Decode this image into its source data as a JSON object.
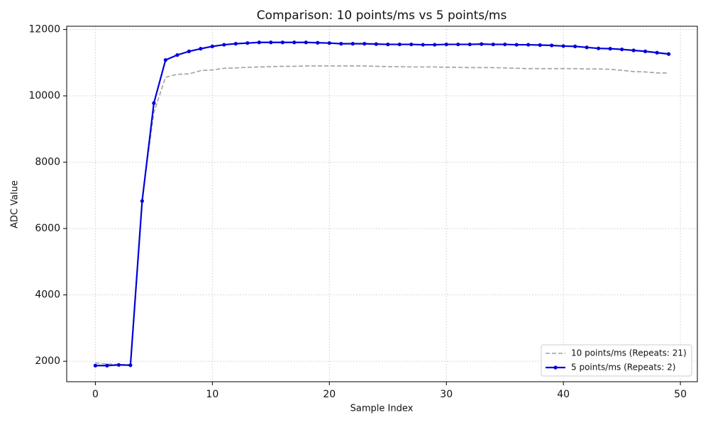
{
  "chart_data": {
    "type": "line",
    "title": "Comparison: 10 points/ms vs 5 points/ms",
    "x_label": "Sample Index",
    "y_label": "ADC Value",
    "x": [
      0,
      1,
      2,
      3,
      4,
      5,
      6,
      7,
      8,
      9,
      10,
      11,
      12,
      13,
      14,
      15,
      16,
      17,
      18,
      19,
      20,
      21,
      22,
      23,
      24,
      25,
      26,
      27,
      28,
      29,
      30,
      31,
      32,
      33,
      34,
      35,
      36,
      37,
      38,
      39,
      40,
      41,
      42,
      43,
      44,
      45,
      46,
      47,
      48,
      49
    ],
    "series": [
      {
        "name": "10 points/ms (Repeats: 21)",
        "color": "#a0a0a0",
        "style": "dashed",
        "markers": false,
        "values": [
          1950,
          1920,
          1900,
          1900,
          6900,
          9500,
          10560,
          10650,
          10660,
          10760,
          10780,
          10830,
          10840,
          10860,
          10870,
          10880,
          10890,
          10890,
          10900,
          10900,
          10900,
          10900,
          10900,
          10900,
          10890,
          10880,
          10880,
          10870,
          10870,
          10870,
          10860,
          10860,
          10850,
          10850,
          10850,
          10840,
          10830,
          10820,
          10820,
          10820,
          10820,
          10820,
          10810,
          10810,
          10800,
          10770,
          10730,
          10720,
          10690,
          10690
        ]
      },
      {
        "name": "5 points/ms (Repeats: 2)",
        "color": "#0000dd",
        "style": "solid",
        "markers": true,
        "values": [
          1870,
          1870,
          1890,
          1880,
          6830,
          9780,
          11080,
          11230,
          11340,
          11420,
          11490,
          11540,
          11570,
          11590,
          11610,
          11610,
          11610,
          11610,
          11610,
          11600,
          11590,
          11570,
          11570,
          11570,
          11560,
          11550,
          11550,
          11550,
          11540,
          11540,
          11550,
          11550,
          11550,
          11560,
          11550,
          11550,
          11540,
          11540,
          11530,
          11520,
          11500,
          11490,
          11460,
          11430,
          11420,
          11400,
          11370,
          11340,
          11300,
          11260
        ]
      }
    ],
    "xlim": [
      -2.45,
      51.45
    ],
    "xticks": [
      0,
      10,
      20,
      30,
      40,
      50
    ],
    "ylim": [
      1383,
      12097
    ],
    "yticks": [
      2000,
      4000,
      6000,
      8000,
      10000,
      12000
    ],
    "grid": true,
    "legend": "lower right"
  }
}
